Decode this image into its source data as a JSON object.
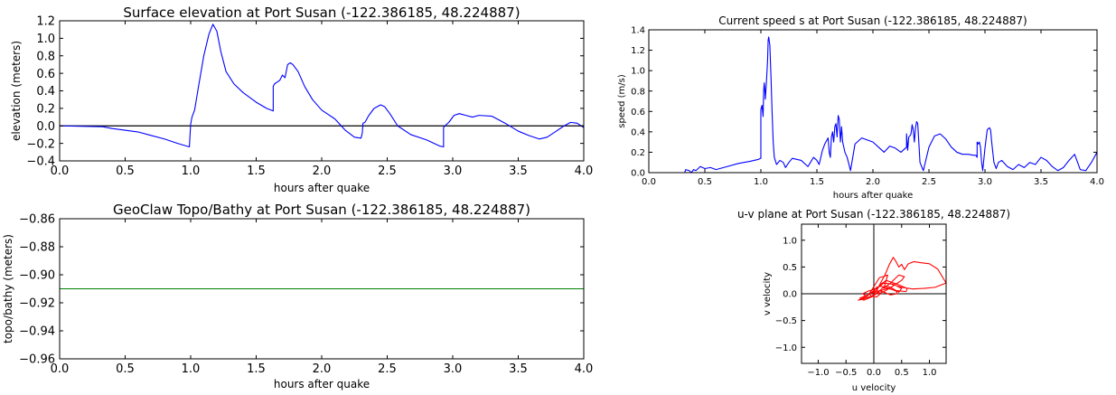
{
  "chart_data": [
    {
      "id": "elev",
      "type": "line",
      "title": "Surface elevation at Port Susan  (-122.386185, 48.224887)",
      "xlabel": "hours after quake",
      "ylabel": "elevation (meters)",
      "xlim": [
        0,
        4
      ],
      "ylim": [
        -0.4,
        1.2
      ],
      "xticks": [
        0.0,
        0.5,
        1.0,
        1.5,
        2.0,
        2.5,
        3.0,
        3.5,
        4.0
      ],
      "yticks": [
        -0.4,
        -0.2,
        0.0,
        0.2,
        0.4,
        0.6,
        0.8,
        1.0,
        1.2
      ],
      "x_tick_decimals": 1,
      "y_tick_decimals": 1,
      "grid": false,
      "hline": 0,
      "series": [
        {
          "color": "#0000ff",
          "x": [
            0.0,
            0.33,
            0.4,
            0.5,
            0.6,
            0.7,
            0.8,
            0.9,
            0.99,
            1.0,
            1.01,
            1.03,
            1.06,
            1.1,
            1.14,
            1.17,
            1.2,
            1.23,
            1.27,
            1.33,
            1.4,
            1.5,
            1.58,
            1.63,
            1.63,
            1.64,
            1.66,
            1.68,
            1.7,
            1.72,
            1.74,
            1.76,
            1.78,
            1.82,
            1.87,
            1.93,
            2.0,
            2.1,
            2.18,
            2.25,
            2.3,
            2.31,
            2.315,
            2.33,
            2.36,
            2.4,
            2.45,
            2.48,
            2.52,
            2.58,
            2.68,
            2.8,
            2.9,
            2.93,
            2.93,
            2.94,
            2.97,
            3.01,
            3.05,
            3.1,
            3.15,
            3.2,
            3.3,
            3.4,
            3.5,
            3.58,
            3.66,
            3.72,
            3.78,
            3.85,
            3.9,
            3.95,
            4.0
          ],
          "y": [
            0.0,
            -0.01,
            -0.03,
            -0.05,
            -0.07,
            -0.11,
            -0.15,
            -0.2,
            -0.24,
            0.02,
            0.1,
            0.18,
            0.45,
            0.8,
            1.05,
            1.16,
            1.08,
            0.85,
            0.62,
            0.48,
            0.38,
            0.27,
            0.2,
            0.17,
            0.45,
            0.48,
            0.5,
            0.52,
            0.58,
            0.55,
            0.7,
            0.72,
            0.7,
            0.62,
            0.45,
            0.3,
            0.18,
            0.08,
            -0.05,
            -0.13,
            -0.14,
            -0.08,
            0.03,
            0.04,
            0.12,
            0.2,
            0.24,
            0.22,
            0.14,
            0.0,
            -0.1,
            -0.16,
            -0.23,
            -0.24,
            -0.02,
            0.0,
            0.04,
            0.12,
            0.14,
            0.12,
            0.1,
            0.12,
            0.11,
            0.03,
            -0.06,
            -0.11,
            -0.15,
            -0.13,
            -0.07,
            0.0,
            0.04,
            0.03,
            -0.02
          ]
        }
      ]
    },
    {
      "id": "speed",
      "type": "line",
      "title": "Current speed s at Port Susan  (-122.386185, 48.224887)",
      "xlabel": "hours after quake",
      "ylabel": "speed (m/s)",
      "xlim": [
        0,
        4
      ],
      "ylim": [
        0,
        1.4
      ],
      "xticks": [
        0.0,
        0.5,
        1.0,
        1.5,
        2.0,
        2.5,
        3.0,
        3.5,
        4.0
      ],
      "yticks": [
        0.0,
        0.2,
        0.4,
        0.6,
        0.8,
        1.0,
        1.2,
        1.4
      ],
      "x_tick_decimals": 1,
      "y_tick_decimals": 1,
      "grid": false,
      "series": [
        {
          "color": "#0000ff",
          "x": [
            0.0,
            0.32,
            0.33,
            0.36,
            0.38,
            0.4,
            0.42,
            0.46,
            0.5,
            0.55,
            0.6,
            0.7,
            0.8,
            0.9,
            0.98,
            0.995,
            1.0,
            1.0,
            1.01,
            1.02,
            1.025,
            1.03,
            1.035,
            1.04,
            1.05,
            1.06,
            1.065,
            1.07,
            1.08,
            1.09,
            1.1,
            1.11,
            1.12,
            1.14,
            1.17,
            1.2,
            1.22,
            1.25,
            1.28,
            1.32,
            1.36,
            1.42,
            1.47,
            1.5,
            1.52,
            1.55,
            1.57,
            1.6,
            1.61,
            1.62,
            1.63,
            1.64,
            1.65,
            1.66,
            1.67,
            1.68,
            1.69,
            1.7,
            1.71,
            1.72,
            1.73,
            1.75,
            1.77,
            1.8,
            1.84,
            1.9,
            1.95,
            2.0,
            2.05,
            2.1,
            2.15,
            2.2,
            2.25,
            2.29,
            2.3,
            2.3,
            2.31,
            2.32,
            2.33,
            2.34,
            2.35,
            2.36,
            2.37,
            2.38,
            2.39,
            2.4,
            2.42,
            2.45,
            2.5,
            2.55,
            2.6,
            2.65,
            2.7,
            2.75,
            2.8,
            2.85,
            2.9,
            2.92,
            2.93,
            2.93,
            2.94,
            2.95,
            2.96,
            2.97,
            2.98,
            3.0,
            3.02,
            3.04,
            3.05,
            3.06,
            3.08,
            3.1,
            3.12,
            3.15,
            3.2,
            3.25,
            3.3,
            3.35,
            3.4,
            3.45,
            3.5,
            3.55,
            3.6,
            3.65,
            3.7,
            3.75,
            3.8,
            3.85,
            3.9,
            3.95,
            4.0
          ],
          "y": [
            0.0,
            0.0,
            0.03,
            0.02,
            0.0,
            0.03,
            0.02,
            0.06,
            0.04,
            0.05,
            0.03,
            0.06,
            0.09,
            0.11,
            0.13,
            0.14,
            0.14,
            0.62,
            0.66,
            0.55,
            0.8,
            0.88,
            0.82,
            0.72,
            0.9,
            1.1,
            1.3,
            1.33,
            1.25,
            0.95,
            0.6,
            0.3,
            0.15,
            0.08,
            0.12,
            0.1,
            0.05,
            0.1,
            0.14,
            0.13,
            0.12,
            0.06,
            0.15,
            0.12,
            0.08,
            0.22,
            0.28,
            0.34,
            0.2,
            0.15,
            0.35,
            0.4,
            0.3,
            0.45,
            0.48,
            0.35,
            0.56,
            0.52,
            0.3,
            0.45,
            0.3,
            0.2,
            0.15,
            0.02,
            0.28,
            0.34,
            0.32,
            0.3,
            0.25,
            0.2,
            0.26,
            0.24,
            0.2,
            0.24,
            0.25,
            0.38,
            0.22,
            0.35,
            0.36,
            0.38,
            0.47,
            0.42,
            0.3,
            0.44,
            0.5,
            0.48,
            0.1,
            0.02,
            0.25,
            0.36,
            0.38,
            0.33,
            0.25,
            0.2,
            0.18,
            0.18,
            0.17,
            0.17,
            0.15,
            0.3,
            0.28,
            0.3,
            0.25,
            0.1,
            0.02,
            0.24,
            0.42,
            0.44,
            0.42,
            0.3,
            0.1,
            0.04,
            0.1,
            0.12,
            0.06,
            0.03,
            0.08,
            0.05,
            0.1,
            0.08,
            0.15,
            0.12,
            0.06,
            0.02,
            0.05,
            0.12,
            0.18,
            0.03,
            0.02,
            0.1,
            0.2
          ]
        }
      ]
    },
    {
      "id": "topo",
      "type": "line",
      "title": "GeoClaw Topo/Bathy at Port Susan  (-122.386185, 48.224887)",
      "xlabel": "hours after quake",
      "ylabel": "topo/bathy (meters)",
      "xlim": [
        0,
        4
      ],
      "ylim": [
        -0.96,
        -0.86
      ],
      "xticks": [
        0.0,
        0.5,
        1.0,
        1.5,
        2.0,
        2.5,
        3.0,
        3.5,
        4.0
      ],
      "yticks": [
        -0.96,
        -0.94,
        -0.92,
        -0.9,
        -0.88,
        -0.86
      ],
      "x_tick_decimals": 1,
      "y_tick_decimals": 2,
      "grid": false,
      "series": [
        {
          "color": "#008000",
          "x": [
            0.0,
            4.0
          ],
          "y": [
            -0.91,
            -0.91
          ]
        }
      ]
    },
    {
      "id": "uv",
      "type": "line",
      "title": "u-v plane at Port Susan  (-122.386185, 48.224887)",
      "xlabel": "u velocity",
      "ylabel": "v velocity",
      "xlim": [
        -1.3,
        1.3
      ],
      "ylim": [
        -1.3,
        1.3
      ],
      "xticks": [
        -1.0,
        -0.5,
        0.0,
        0.5,
        1.0
      ],
      "yticks": [
        -1.0,
        -0.5,
        0.0,
        0.5,
        1.0
      ],
      "x_tick_decimals": 1,
      "y_tick_decimals": 1,
      "grid": false,
      "axes_lines": true,
      "series": [
        {
          "color": "#ff0000",
          "x": [
            0.0,
            0.05,
            0.12,
            0.2,
            0.28,
            0.35,
            0.4,
            0.45,
            0.5,
            0.55,
            0.62,
            0.72,
            0.85,
            1.0,
            1.15,
            1.3,
            1.1,
            0.9,
            0.7,
            0.5,
            0.32,
            0.18,
            0.05,
            0.08,
            0.2,
            0.35,
            0.5,
            0.55,
            0.45,
            0.3,
            0.18,
            0.25,
            0.1,
            -0.05,
            -0.12,
            -0.2,
            -0.1,
            0.0,
            0.08,
            0.15,
            0.35,
            0.5,
            0.45,
            0.3,
            0.2,
            0.1,
            -0.05,
            -0.2,
            -0.28,
            -0.15,
            0.0,
            0.1,
            0.22,
            0.42,
            0.6,
            0.58,
            0.4,
            0.25,
            0.1,
            -0.02,
            -0.18,
            -0.25,
            -0.1,
            0.05,
            0.12,
            0.05,
            -0.05,
            -0.08,
            0.0,
            0.05,
            0.12,
            0.28,
            0.4,
            0.42,
            0.3,
            0.2,
            0.1,
            0.06
          ],
          "y": [
            0.0,
            0.05,
            0.2,
            0.35,
            0.55,
            0.68,
            0.6,
            0.5,
            0.55,
            0.45,
            0.56,
            0.6,
            0.58,
            0.56,
            0.46,
            0.2,
            0.12,
            0.1,
            0.09,
            0.12,
            0.18,
            0.2,
            0.1,
            0.0,
            0.05,
            0.15,
            0.25,
            0.32,
            0.35,
            0.2,
            0.1,
            0.35,
            0.3,
            0.05,
            -0.05,
            0.0,
            0.05,
            0.08,
            0.12,
            0.2,
            0.18,
            0.1,
            0.03,
            0.12,
            0.15,
            0.05,
            -0.05,
            -0.1,
            -0.12,
            -0.06,
            0.05,
            0.15,
            0.25,
            0.18,
            0.1,
            0.04,
            0.06,
            0.1,
            0.05,
            -0.05,
            -0.12,
            -0.08,
            -0.02,
            0.06,
            0.0,
            -0.06,
            -0.04,
            0.0,
            0.06,
            0.12,
            0.14,
            0.1,
            0.05,
            0.0,
            -0.02,
            0.02,
            0.06,
            0.03
          ]
        }
      ]
    }
  ]
}
